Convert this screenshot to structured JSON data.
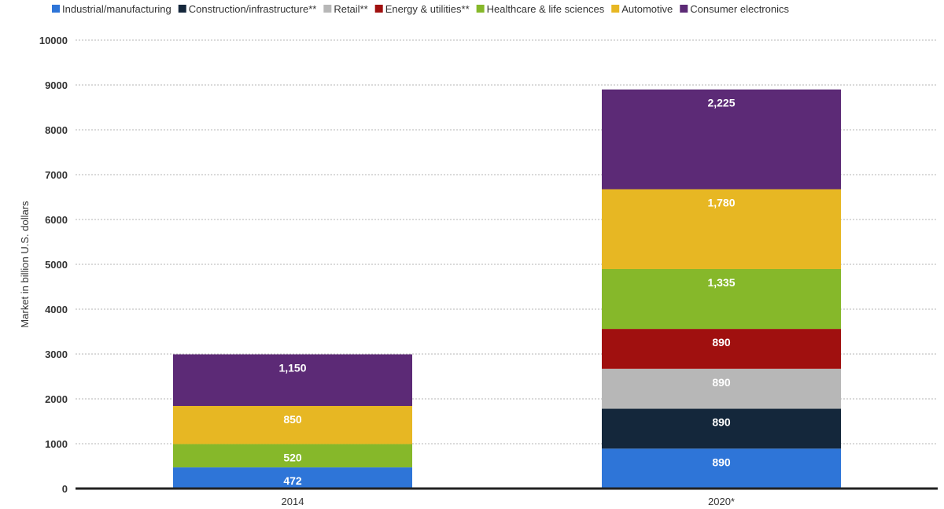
{
  "chart_data": {
    "type": "bar",
    "stacked": true,
    "categories": [
      "2014",
      "2020*"
    ],
    "ylabel": "Market in billion U.S. dollars",
    "xlabel": "",
    "ylim": [
      0,
      10000
    ],
    "yticks": [
      0,
      1000,
      2000,
      3000,
      4000,
      5000,
      6000,
      7000,
      8000,
      9000,
      10000
    ],
    "grid": true,
    "legend_position": "top",
    "series": [
      {
        "name": "Industrial/manufacturing",
        "color": "#2e75d8",
        "values": [
          472,
          890
        ],
        "labels": [
          "472",
          "890"
        ]
      },
      {
        "name": "Construction/infrastructure**",
        "color": "#14273b",
        "values": [
          0,
          890
        ],
        "labels": [
          "",
          "890"
        ]
      },
      {
        "name": "Retail**",
        "color": "#b7b7b7",
        "values": [
          0,
          890
        ],
        "labels": [
          "",
          "890"
        ]
      },
      {
        "name": "Energy & utilities**",
        "color": "#a0100f",
        "values": [
          0,
          890
        ],
        "labels": [
          "",
          "890"
        ]
      },
      {
        "name": "Healthcare & life sciences",
        "color": "#86b82a",
        "values": [
          520,
          1335
        ],
        "labels": [
          "520",
          "1,335"
        ]
      },
      {
        "name": "Automotive",
        "color": "#e7b723",
        "values": [
          850,
          1780
        ],
        "labels": [
          "850",
          "1,780"
        ]
      },
      {
        "name": "Consumer electronics",
        "color": "#5c2a76",
        "values": [
          1150,
          2225
        ],
        "labels": [
          "1,150",
          "2,225"
        ]
      }
    ]
  }
}
